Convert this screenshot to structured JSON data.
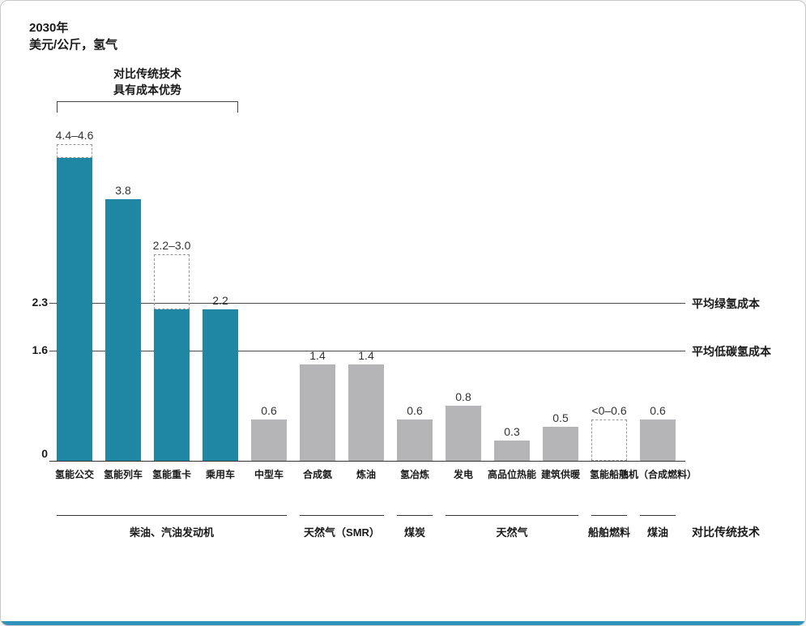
{
  "header": {
    "title": "2030年",
    "unit": "美元/公斤，氢气"
  },
  "chart_data": {
    "type": "bar",
    "title": "2030年",
    "ylabel": "美元/公斤，氢气",
    "ylim": [
      0,
      4.6
    ],
    "grid": false,
    "annotation_bracket": {
      "lines": [
        "对比传统技术",
        "具有成本优势"
      ],
      "covers": [
        "氢能公交",
        "氢能列车",
        "氢能重卡",
        "乘用车"
      ]
    },
    "categories": [
      "氢能公交",
      "氢能列车",
      "氢能重卡",
      "乘用车",
      "中型车",
      "合成氨",
      "炼油",
      "氢冶炼",
      "发电",
      "高品位热能",
      "建筑供暖",
      "氢能船舶",
      "飞机（合成燃料）"
    ],
    "bars": [
      {
        "category": "氢能公交",
        "solid": 4.4,
        "outline_to": 4.6,
        "label": "4.4–4.6",
        "color": "teal"
      },
      {
        "category": "氢能列车",
        "solid": 3.8,
        "outline_to": null,
        "label": "3.8",
        "color": "teal"
      },
      {
        "category": "氢能重卡",
        "solid": 2.2,
        "outline_to": 3.0,
        "label": "2.2–3.0",
        "color": "teal"
      },
      {
        "category": "乘用车",
        "solid": 2.2,
        "outline_to": null,
        "label": "2.2",
        "color": "teal"
      },
      {
        "category": "中型车",
        "solid": 0.6,
        "outline_to": null,
        "label": "0.6",
        "color": "gray"
      },
      {
        "category": "合成氨",
        "solid": 1.4,
        "outline_to": null,
        "label": "1.4",
        "color": "gray"
      },
      {
        "category": "炼油",
        "solid": 1.4,
        "outline_to": null,
        "label": "1.4",
        "color": "gray"
      },
      {
        "category": "氢冶炼",
        "solid": 0.6,
        "outline_to": null,
        "label": "0.6",
        "color": "gray"
      },
      {
        "category": "发电",
        "solid": 0.8,
        "outline_to": null,
        "label": "0.8",
        "color": "gray"
      },
      {
        "category": "高品位热能",
        "solid": 0.3,
        "outline_to": null,
        "label": "0.3",
        "color": "gray"
      },
      {
        "category": "建筑供暖",
        "solid": 0.5,
        "outline_to": null,
        "label": "0.5",
        "color": "gray"
      },
      {
        "category": "氢能船舶",
        "solid": 0,
        "outline_to": 0.6,
        "label": "<0–0.6",
        "color": "outline"
      },
      {
        "category": "飞机（合成燃料）",
        "solid": 0.6,
        "outline_to": null,
        "label": "0.6",
        "color": "gray"
      }
    ],
    "reference_lines": [
      {
        "value": 2.3,
        "label": "平均绿氢成本"
      },
      {
        "value": 1.6,
        "label": "平均低碳氢成本"
      }
    ],
    "y_ticks": [
      {
        "value": 2.3,
        "label": "2.3"
      },
      {
        "value": 1.6,
        "label": "1.6"
      },
      {
        "value": 0,
        "label": "0"
      }
    ],
    "groups": [
      {
        "label": "柴油、汽油发动机",
        "start": 0,
        "end": 4
      },
      {
        "label": "天然气（SMR）",
        "start": 5,
        "end": 6
      },
      {
        "label": "煤炭",
        "start": 7,
        "end": 7
      },
      {
        "label": "天然气",
        "start": 8,
        "end": 10
      },
      {
        "label": "船舶燃料",
        "start": 11,
        "end": 11
      },
      {
        "label": "煤油",
        "start": 12,
        "end": 12
      }
    ],
    "group_axis_label": "对比传统技术",
    "colors": {
      "teal": "#1f87a3",
      "gray": "#b5b5b7",
      "outline_border": "#9a9a9a",
      "axis": "#333333",
      "accent_strip": "#2d93bb"
    }
  }
}
